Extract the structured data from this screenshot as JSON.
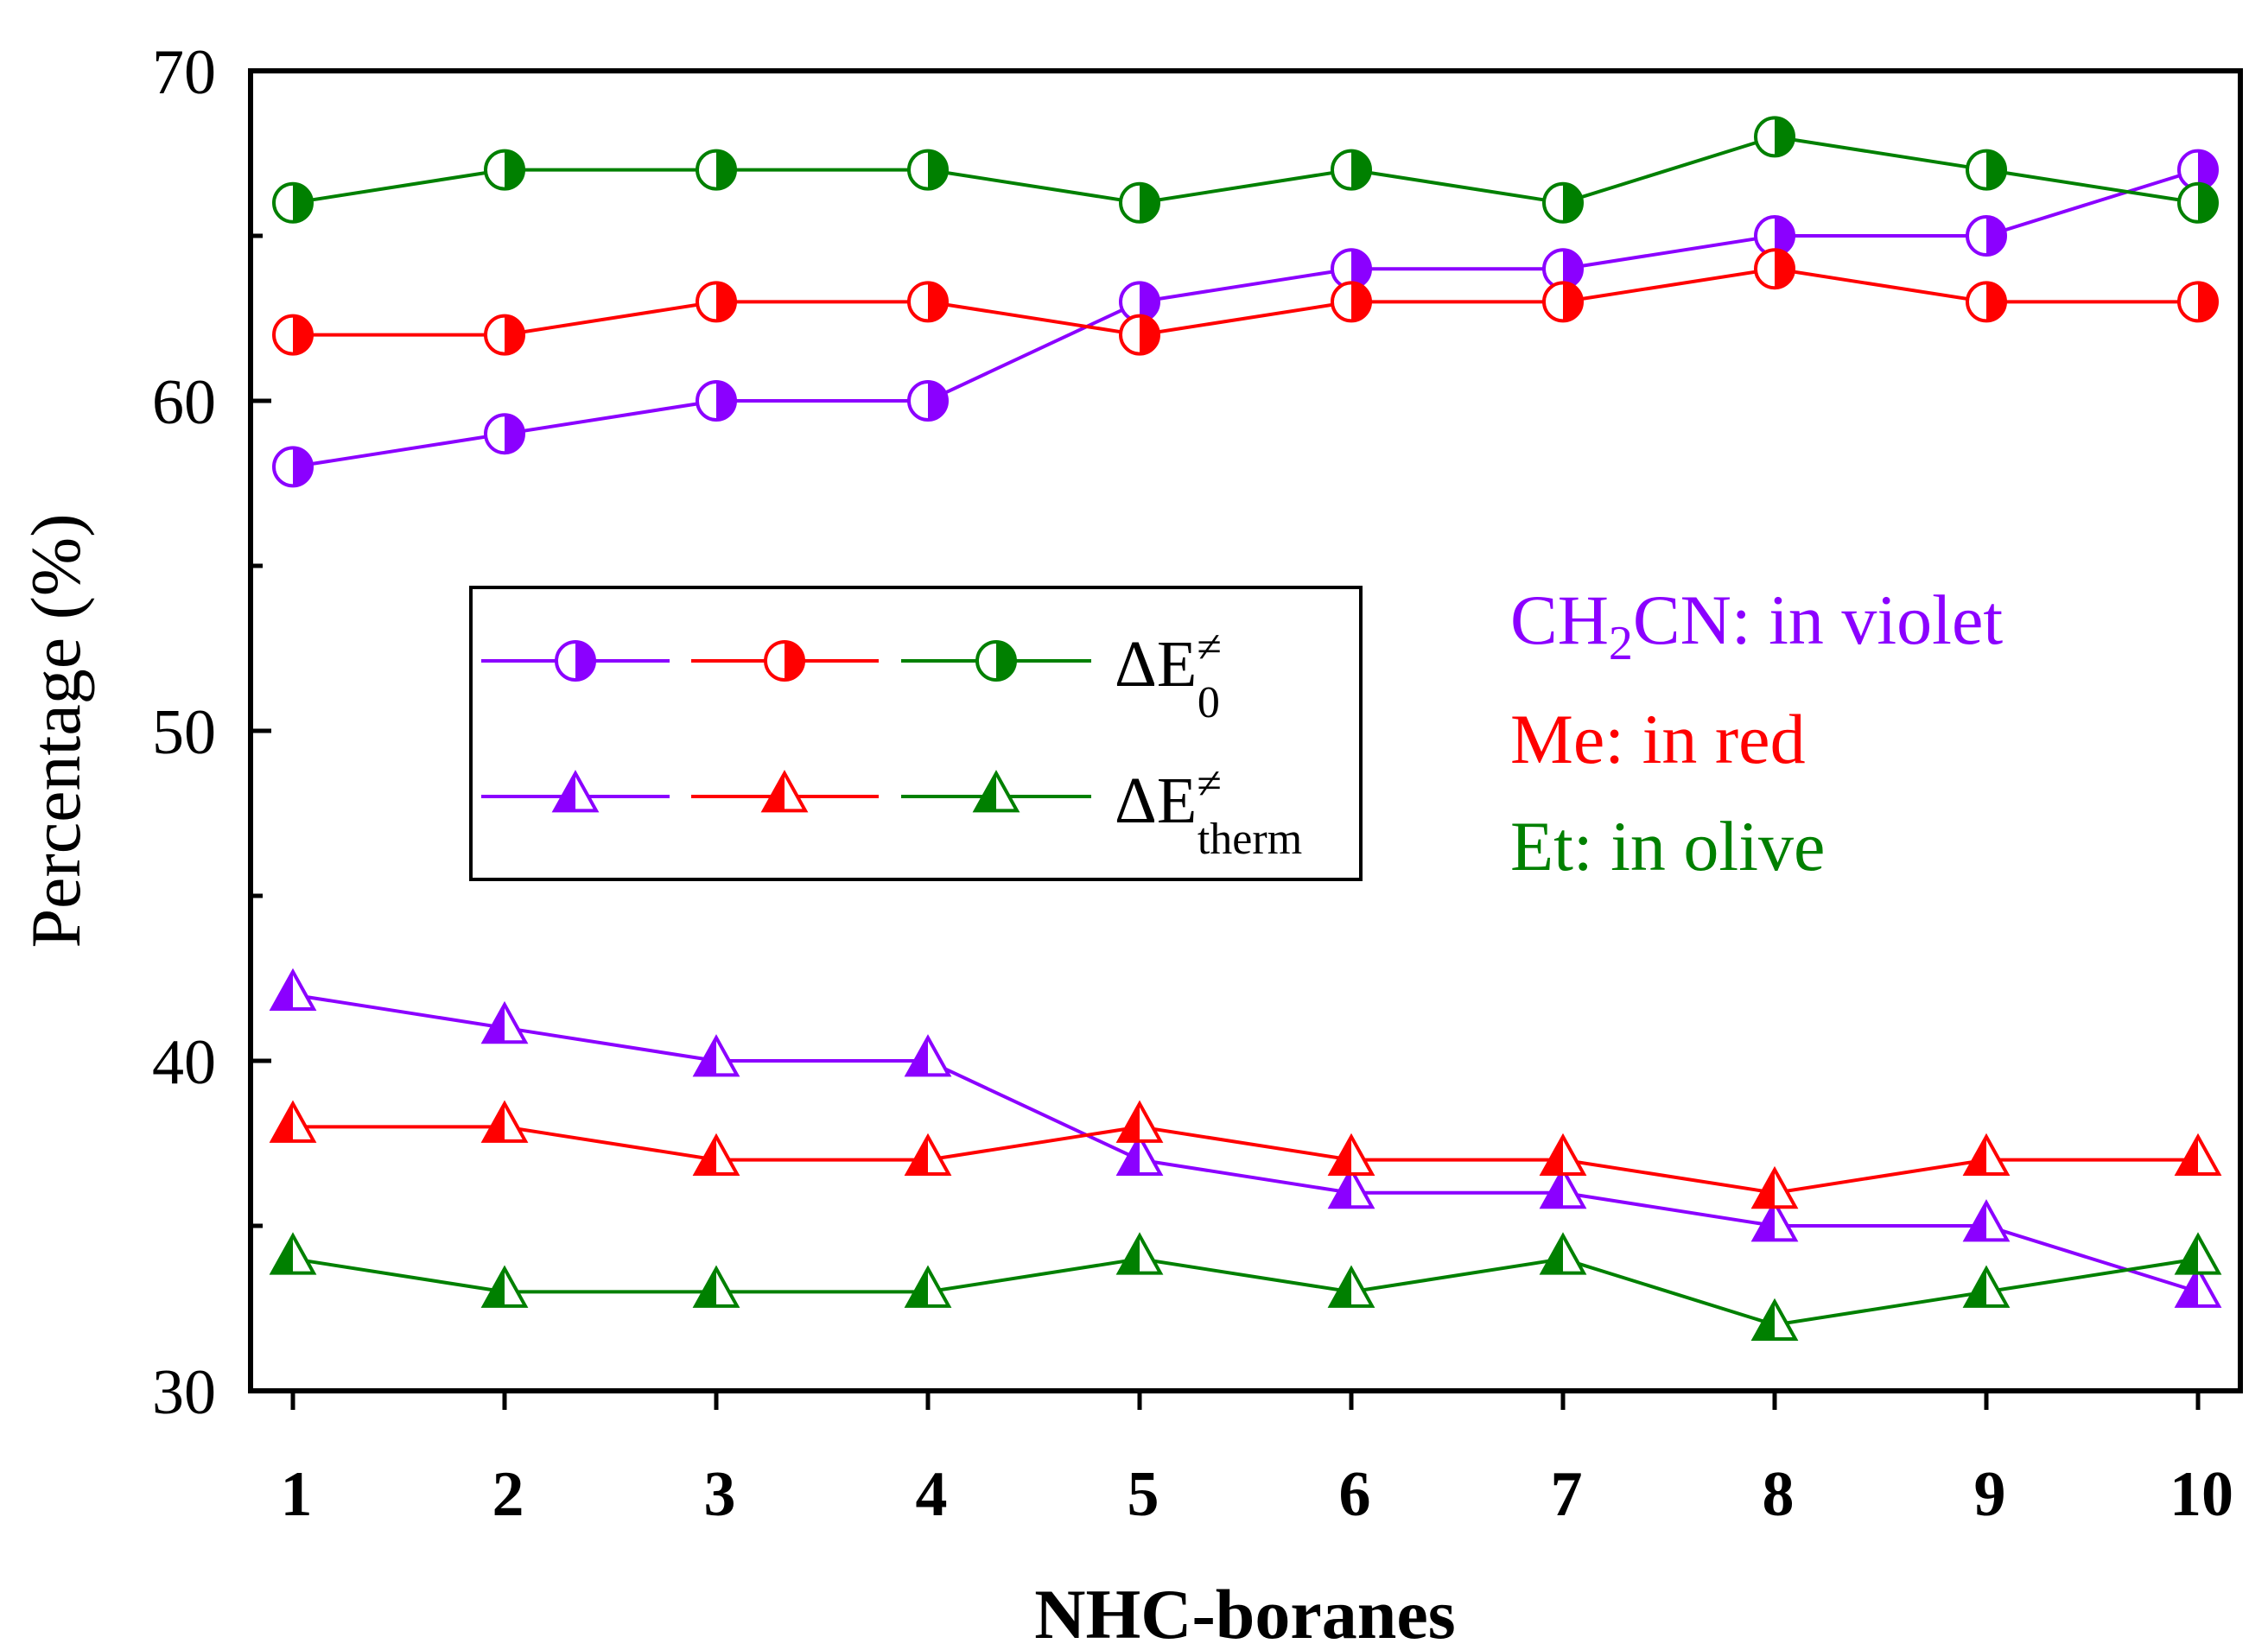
{
  "chart_data": {
    "type": "line",
    "x": [
      1,
      2,
      3,
      4,
      5,
      6,
      7,
      8,
      9,
      10
    ],
    "xtick_labels": [
      "1",
      "2",
      "3",
      "4",
      "5",
      "6",
      "7",
      "8",
      "9",
      "10"
    ],
    "xlabel": "NHC-boranes",
    "ylabel": "Percentage (%)",
    "xlim": [
      0.8,
      10.2
    ],
    "ylim": [
      30,
      70
    ],
    "yticks": [
      30,
      40,
      50,
      60,
      70
    ],
    "ytick_labels": [
      "30",
      "40",
      "50",
      "60",
      "70"
    ],
    "grid": false,
    "series": [
      {
        "name": "CH2CN ΔE0≠",
        "group": "CH2CN",
        "quantity": "dE0",
        "color": "#8b00ff",
        "marker": "half-circle",
        "values": [
          58,
          59,
          60,
          60,
          63,
          64,
          64,
          65,
          65,
          67
        ]
      },
      {
        "name": "Me ΔE0≠",
        "group": "Me",
        "quantity": "dE0",
        "color": "#ff0000",
        "marker": "half-circle",
        "values": [
          62,
          62,
          63,
          63,
          62,
          63,
          63,
          64,
          63,
          63
        ]
      },
      {
        "name": "Et ΔE0≠",
        "group": "Et",
        "quantity": "dE0",
        "color": "#008000",
        "marker": "half-circle",
        "values": [
          66,
          67,
          67,
          67,
          66,
          67,
          66,
          68,
          67,
          66
        ]
      },
      {
        "name": "CH2CN ΔEtherm≠",
        "group": "CH2CN",
        "quantity": "dEtherm",
        "color": "#8b00ff",
        "marker": "half-triangle",
        "values": [
          42,
          41,
          40,
          40,
          37,
          36,
          36,
          35,
          35,
          33
        ]
      },
      {
        "name": "Me ΔEtherm≠",
        "group": "Me",
        "quantity": "dEtherm",
        "color": "#ff0000",
        "marker": "half-triangle",
        "values": [
          38,
          38,
          37,
          37,
          38,
          37,
          37,
          36,
          37,
          37
        ]
      },
      {
        "name": "Et ΔEtherm≠",
        "group": "Et",
        "quantity": "dEtherm",
        "color": "#008000",
        "marker": "half-triangle",
        "values": [
          34,
          33,
          33,
          33,
          34,
          33,
          34,
          32,
          33,
          34
        ]
      }
    ],
    "legend": {
      "placement": "middle-left",
      "entries": [
        {
          "main": "ΔE",
          "sup": "≠",
          "sub": "0"
        },
        {
          "main": "ΔE",
          "sup": "≠",
          "sub": "therm"
        }
      ]
    },
    "annotations": [
      {
        "text_before": "CH",
        "sub": "2",
        "text_after": "CN: in violet",
        "color": "#8b00ff"
      },
      {
        "text": "Me: in red",
        "color": "#ff0000"
      },
      {
        "text": "Et: in olive",
        "color": "#008000"
      }
    ]
  }
}
